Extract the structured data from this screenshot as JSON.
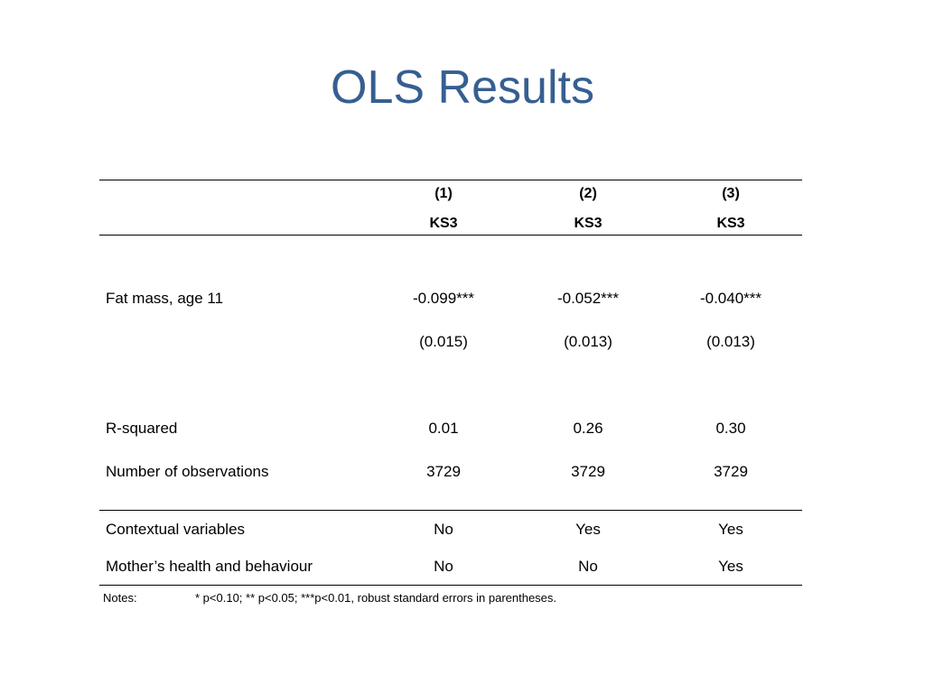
{
  "slide": {
    "title": "OLS Results"
  },
  "table": {
    "header": {
      "col_numbers": [
        "(1)",
        "(2)",
        "(3)"
      ],
      "col_outcomes": [
        "KS3",
        "KS3",
        "KS3"
      ]
    },
    "rows": [
      {
        "label": "Fat mass, age 11",
        "values": [
          "-0.099***",
          "-0.052***",
          "-0.040***"
        ]
      },
      {
        "label": "",
        "values": [
          "(0.015)",
          "(0.013)",
          "(0.013)"
        ]
      },
      {
        "label": "R-squared",
        "values": [
          "0.01",
          "0.26",
          "0.30"
        ]
      },
      {
        "label": "Number of observations",
        "values": [
          "3729",
          "3729",
          "3729"
        ]
      },
      {
        "label": "Contextual variables",
        "values": [
          "No",
          "Yes",
          "Yes"
        ]
      },
      {
        "label": "Mother’s health and behaviour",
        "values": [
          "No",
          "No",
          "Yes"
        ]
      }
    ],
    "notes": {
      "label": "Notes:",
      "text": "* p<0.10; ** p<0.05; ***p<0.01, robust standard errors in parentheses."
    }
  },
  "colors": {
    "title": "#365f91",
    "text": "#000000",
    "background": "#ffffff"
  }
}
